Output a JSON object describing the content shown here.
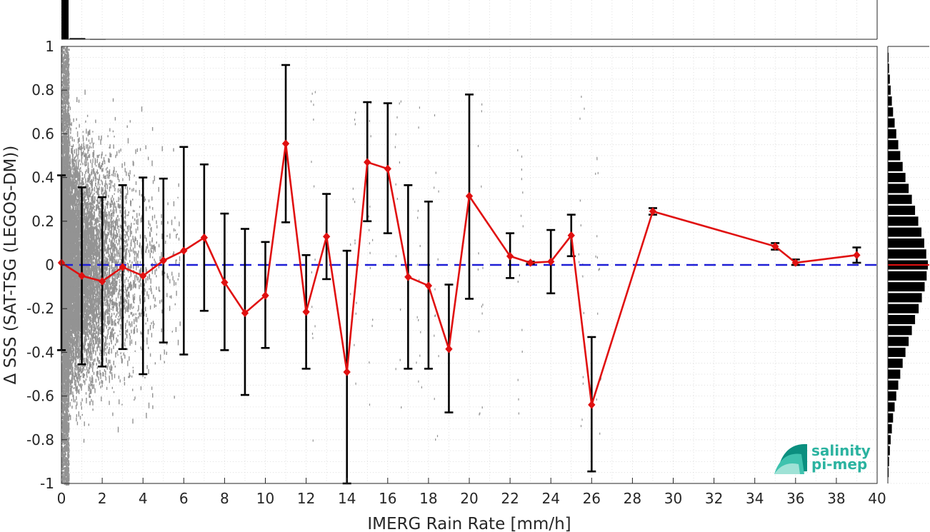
{
  "chart_data": {
    "type": "scatter",
    "xlabel": "IMERG Rain Rate [mm/h]",
    "ylabel": "Δ SSS (SAT-TSG (LEGOS-DM))",
    "xlim": [
      0,
      40
    ],
    "ylim": [
      -1,
      1
    ],
    "xticks": [
      "0",
      "2",
      "4",
      "6",
      "8",
      "10",
      "12",
      "14",
      "16",
      "18",
      "20",
      "22",
      "24",
      "26",
      "28",
      "30",
      "32",
      "34",
      "36",
      "38",
      "40"
    ],
    "yticks": [
      "1",
      "0.8",
      "0.6",
      "0.4",
      "0.2",
      "0",
      "-0.2",
      "-0.4",
      "-0.6",
      "-0.8",
      "-1"
    ],
    "grid": true,
    "reference_line": {
      "y": 0,
      "color": "#1f1fd6",
      "style": "dashed"
    },
    "series": [
      {
        "type": "line-with-errorbars",
        "color": "#e01010",
        "x": [
          0,
          1,
          2,
          3,
          4,
          5,
          6,
          7,
          8,
          9,
          10,
          11,
          12,
          13,
          14,
          15,
          16,
          17,
          18,
          19,
          20,
          22,
          23,
          24,
          25,
          26,
          29,
          35,
          36,
          39
        ],
        "mean": [
          0.01,
          -0.05,
          -0.075,
          -0.01,
          -0.05,
          0.02,
          0.065,
          0.125,
          -0.08,
          -0.22,
          -0.14,
          0.555,
          -0.215,
          0.13,
          -0.49,
          0.47,
          0.44,
          -0.055,
          -0.095,
          -0.385,
          0.315,
          0.04,
          0.01,
          0.015,
          0.135,
          -0.64,
          0.245,
          0.085,
          0.01,
          0.045
        ],
        "err_low": [
          -0.39,
          -0.455,
          -0.465,
          -0.385,
          -0.5,
          -0.355,
          -0.41,
          -0.21,
          -0.39,
          -0.595,
          -0.38,
          0.195,
          -0.475,
          -0.065,
          -1.0,
          0.2,
          0.145,
          -0.475,
          -0.475,
          -0.675,
          -0.155,
          -0.06,
          0.005,
          -0.13,
          0.04,
          -0.945,
          0.23,
          0.07,
          0.0,
          0.01
        ],
        "err_high": [
          0.41,
          0.355,
          0.31,
          0.365,
          0.4,
          0.395,
          0.54,
          0.46,
          0.235,
          0.165,
          0.105,
          0.915,
          0.045,
          0.325,
          0.065,
          0.745,
          0.74,
          0.365,
          0.29,
          -0.09,
          0.78,
          0.145,
          0.015,
          0.16,
          0.23,
          -0.33,
          0.26,
          0.1,
          0.025,
          0.08
        ]
      }
    ],
    "scatter_cloud": {
      "color": "#808080",
      "description_hidden": true
    },
    "right_histogram": {
      "bins_center": [
        0.95,
        0.9,
        0.85,
        0.8,
        0.75,
        0.7,
        0.65,
        0.6,
        0.55,
        0.5,
        0.45,
        0.4,
        0.35,
        0.3,
        0.25,
        0.2,
        0.15,
        0.1,
        0.05,
        0.0,
        -0.05,
        -0.1,
        -0.15,
        -0.2,
        -0.25,
        -0.3,
        -0.35,
        -0.4,
        -0.45,
        -0.5,
        -0.55,
        -0.6,
        -0.65,
        -0.7,
        -0.75,
        -0.8,
        -0.85,
        -0.9,
        -0.95
      ],
      "counts": [
        0.02,
        0.03,
        0.05,
        0.07,
        0.1,
        0.13,
        0.17,
        0.21,
        0.26,
        0.31,
        0.37,
        0.44,
        0.52,
        0.6,
        0.68,
        0.76,
        0.84,
        0.91,
        0.96,
        1.0,
        0.97,
        0.92,
        0.85,
        0.77,
        0.68,
        0.6,
        0.52,
        0.44,
        0.37,
        0.31,
        0.26,
        0.21,
        0.17,
        0.13,
        0.1,
        0.07,
        0.05,
        0.03,
        0.02
      ],
      "median_line_color": "#e01010"
    },
    "top_histogram": {
      "bins_x": [
        0,
        1,
        2
      ],
      "counts": [
        1.0,
        0.03,
        0.01
      ]
    }
  },
  "logo": {
    "line1": "salinity",
    "line2": "pi-mep"
  }
}
